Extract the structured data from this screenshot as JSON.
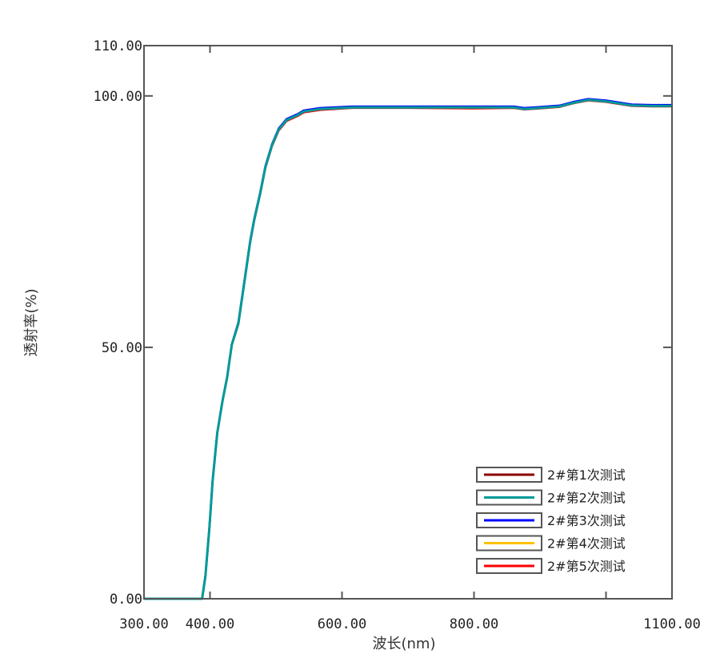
{
  "chart_data": {
    "type": "line",
    "title": "",
    "xlabel": "波长(nm)",
    "ylabel": "透射率(%)",
    "xlim": [
      300,
      1100
    ],
    "ylim": [
      0,
      110
    ],
    "grid": false,
    "legend_position": "lower right",
    "x_ticks": [
      {
        "value": 300,
        "label": "300.00"
      },
      {
        "value": 400,
        "label": "400.00"
      },
      {
        "value": 600,
        "label": "600.00"
      },
      {
        "value": 800,
        "label": "800.00"
      },
      {
        "value": 1000,
        "label": ""
      },
      {
        "value": 1100,
        "label": "1100.00"
      }
    ],
    "y_ticks": [
      {
        "value": 0,
        "label": "0.00"
      },
      {
        "value": 50,
        "label": "50.00"
      },
      {
        "value": 100,
        "label": "100.00"
      },
      {
        "value": 110,
        "label": "110.00"
      }
    ],
    "x": [
      300,
      388,
      393,
      399,
      404,
      411,
      419,
      426,
      433,
      443,
      454,
      461,
      467,
      476,
      484,
      494,
      504,
      516,
      533,
      542,
      567,
      615,
      700,
      800,
      860,
      876,
      900,
      930,
      950,
      973,
      1000,
      1039,
      1070,
      1100
    ],
    "series": [
      {
        "name": "2#第1次测试",
        "color": "#8b0000",
        "values": [
          0,
          0,
          4.4,
          14,
          23.5,
          33,
          39.4,
          44,
          50.5,
          54.8,
          64.8,
          71.1,
          75.4,
          80.6,
          85.9,
          90.2,
          93.3,
          95.2,
          96.2,
          96.9,
          97.4,
          97.7,
          97.7,
          97.7,
          97.7,
          97.4,
          97.6,
          97.9,
          98.6,
          99.2,
          98.9,
          98.1,
          98.0,
          98.0
        ]
      },
      {
        "name": "2#第2次测试",
        "color": "#009999",
        "values": [
          0,
          0,
          4.4,
          14,
          23.5,
          33,
          39.4,
          44,
          50.5,
          54.8,
          64.8,
          71.1,
          75.4,
          80.6,
          85.9,
          90.2,
          93.3,
          95.2,
          96.2,
          96.9,
          97.4,
          97.7,
          97.7,
          97.7,
          97.7,
          97.4,
          97.6,
          97.9,
          98.6,
          99.2,
          98.9,
          98.1,
          98.0,
          98.0
        ]
      },
      {
        "name": "2#第3次测试",
        "color": "#0000ff",
        "values": [
          0,
          0,
          4.5,
          14.1,
          23.6,
          33.1,
          39.5,
          44.1,
          50.6,
          55.0,
          65.0,
          71.3,
          75.6,
          80.8,
          86.1,
          90.4,
          93.5,
          95.4,
          96.4,
          97.1,
          97.6,
          97.9,
          97.9,
          97.9,
          97.9,
          97.6,
          97.8,
          98.1,
          98.8,
          99.4,
          99.1,
          98.3,
          98.2,
          98.2
        ]
      },
      {
        "name": "2#第4次测试",
        "color": "#ffc000",
        "values": [
          0,
          0,
          4.4,
          14,
          23.5,
          33,
          39.4,
          44,
          50.5,
          54.8,
          64.8,
          71.1,
          75.4,
          80.6,
          85.9,
          90.2,
          93.3,
          95.2,
          96.2,
          96.9,
          97.4,
          97.7,
          97.7,
          97.7,
          97.7,
          97.4,
          97.6,
          97.9,
          98.6,
          99.2,
          98.9,
          98.1,
          98.0,
          98.0
        ]
      },
      {
        "name": "2#第5次测试",
        "color": "#ff0000",
        "values": [
          0,
          0,
          4.3,
          13.9,
          23.4,
          32.9,
          39.3,
          43.9,
          50.4,
          54.6,
          64.6,
          70.9,
          75.2,
          80.4,
          85.7,
          90.0,
          93.1,
          95.0,
          96.0,
          96.7,
          97.2,
          97.6,
          97.6,
          97.5,
          97.6,
          97.3,
          97.5,
          97.8,
          98.5,
          99.1,
          98.8,
          98.0,
          97.9,
          97.9
        ]
      }
    ]
  }
}
